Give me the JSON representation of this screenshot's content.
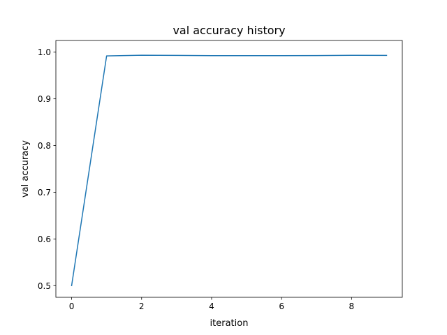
{
  "chart_data": {
    "type": "line",
    "title": "val accuracy history",
    "xlabel": "iteration",
    "ylabel": "val accuracy",
    "xlim": [
      -0.45,
      9.45
    ],
    "ylim": [
      0.475,
      1.025
    ],
    "xticks": [
      0,
      2,
      4,
      6,
      8
    ],
    "yticks": [
      0.5,
      0.6,
      0.7,
      0.8,
      0.9,
      1.0
    ],
    "grid": false,
    "legend": "none",
    "series": [
      {
        "x": [
          0,
          1,
          2,
          3,
          4,
          5,
          6,
          7,
          8,
          9
        ],
        "values": [
          0.5,
          0.992,
          0.9935,
          0.993,
          0.9925,
          0.9925,
          0.9925,
          0.9927,
          0.9933,
          0.993
        ],
        "color": "#1f77b4"
      }
    ]
  }
}
